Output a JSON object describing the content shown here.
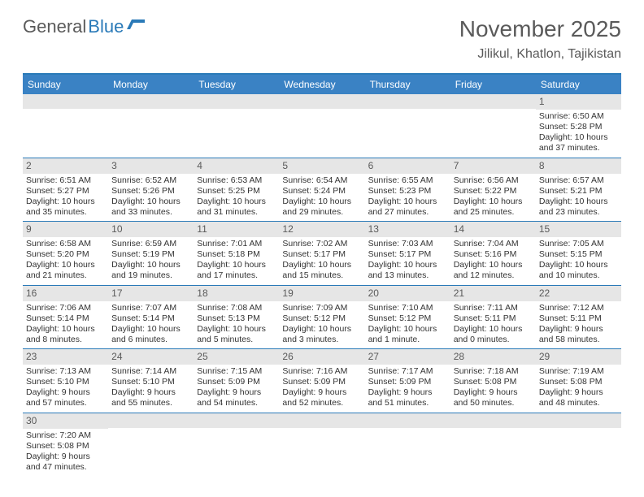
{
  "logo": {
    "text1": "General",
    "text2": "Blue"
  },
  "title": "November 2025",
  "location": "Jilikul, Khatlon, Tajikistan",
  "colors": {
    "header_bar": "#3a82c4",
    "border": "#2a7ab8",
    "daynum_bg": "#e6e6e6",
    "text_muted": "#5a5a5a",
    "text_body": "#333333",
    "logo_blue": "#2a7ab8"
  },
  "day_headers": [
    "Sunday",
    "Monday",
    "Tuesday",
    "Wednesday",
    "Thursday",
    "Friday",
    "Saturday"
  ],
  "weeks": [
    [
      null,
      null,
      null,
      null,
      null,
      null,
      {
        "n": "1",
        "sunrise": "Sunrise: 6:50 AM",
        "sunset": "Sunset: 5:28 PM",
        "daylight": "Daylight: 10 hours and 37 minutes."
      }
    ],
    [
      {
        "n": "2",
        "sunrise": "Sunrise: 6:51 AM",
        "sunset": "Sunset: 5:27 PM",
        "daylight": "Daylight: 10 hours and 35 minutes."
      },
      {
        "n": "3",
        "sunrise": "Sunrise: 6:52 AM",
        "sunset": "Sunset: 5:26 PM",
        "daylight": "Daylight: 10 hours and 33 minutes."
      },
      {
        "n": "4",
        "sunrise": "Sunrise: 6:53 AM",
        "sunset": "Sunset: 5:25 PM",
        "daylight": "Daylight: 10 hours and 31 minutes."
      },
      {
        "n": "5",
        "sunrise": "Sunrise: 6:54 AM",
        "sunset": "Sunset: 5:24 PM",
        "daylight": "Daylight: 10 hours and 29 minutes."
      },
      {
        "n": "6",
        "sunrise": "Sunrise: 6:55 AM",
        "sunset": "Sunset: 5:23 PM",
        "daylight": "Daylight: 10 hours and 27 minutes."
      },
      {
        "n": "7",
        "sunrise": "Sunrise: 6:56 AM",
        "sunset": "Sunset: 5:22 PM",
        "daylight": "Daylight: 10 hours and 25 minutes."
      },
      {
        "n": "8",
        "sunrise": "Sunrise: 6:57 AM",
        "sunset": "Sunset: 5:21 PM",
        "daylight": "Daylight: 10 hours and 23 minutes."
      }
    ],
    [
      {
        "n": "9",
        "sunrise": "Sunrise: 6:58 AM",
        "sunset": "Sunset: 5:20 PM",
        "daylight": "Daylight: 10 hours and 21 minutes."
      },
      {
        "n": "10",
        "sunrise": "Sunrise: 6:59 AM",
        "sunset": "Sunset: 5:19 PM",
        "daylight": "Daylight: 10 hours and 19 minutes."
      },
      {
        "n": "11",
        "sunrise": "Sunrise: 7:01 AM",
        "sunset": "Sunset: 5:18 PM",
        "daylight": "Daylight: 10 hours and 17 minutes."
      },
      {
        "n": "12",
        "sunrise": "Sunrise: 7:02 AM",
        "sunset": "Sunset: 5:17 PM",
        "daylight": "Daylight: 10 hours and 15 minutes."
      },
      {
        "n": "13",
        "sunrise": "Sunrise: 7:03 AM",
        "sunset": "Sunset: 5:17 PM",
        "daylight": "Daylight: 10 hours and 13 minutes."
      },
      {
        "n": "14",
        "sunrise": "Sunrise: 7:04 AM",
        "sunset": "Sunset: 5:16 PM",
        "daylight": "Daylight: 10 hours and 12 minutes."
      },
      {
        "n": "15",
        "sunrise": "Sunrise: 7:05 AM",
        "sunset": "Sunset: 5:15 PM",
        "daylight": "Daylight: 10 hours and 10 minutes."
      }
    ],
    [
      {
        "n": "16",
        "sunrise": "Sunrise: 7:06 AM",
        "sunset": "Sunset: 5:14 PM",
        "daylight": "Daylight: 10 hours and 8 minutes."
      },
      {
        "n": "17",
        "sunrise": "Sunrise: 7:07 AM",
        "sunset": "Sunset: 5:14 PM",
        "daylight": "Daylight: 10 hours and 6 minutes."
      },
      {
        "n": "18",
        "sunrise": "Sunrise: 7:08 AM",
        "sunset": "Sunset: 5:13 PM",
        "daylight": "Daylight: 10 hours and 5 minutes."
      },
      {
        "n": "19",
        "sunrise": "Sunrise: 7:09 AM",
        "sunset": "Sunset: 5:12 PM",
        "daylight": "Daylight: 10 hours and 3 minutes."
      },
      {
        "n": "20",
        "sunrise": "Sunrise: 7:10 AM",
        "sunset": "Sunset: 5:12 PM",
        "daylight": "Daylight: 10 hours and 1 minute."
      },
      {
        "n": "21",
        "sunrise": "Sunrise: 7:11 AM",
        "sunset": "Sunset: 5:11 PM",
        "daylight": "Daylight: 10 hours and 0 minutes."
      },
      {
        "n": "22",
        "sunrise": "Sunrise: 7:12 AM",
        "sunset": "Sunset: 5:11 PM",
        "daylight": "Daylight: 9 hours and 58 minutes."
      }
    ],
    [
      {
        "n": "23",
        "sunrise": "Sunrise: 7:13 AM",
        "sunset": "Sunset: 5:10 PM",
        "daylight": "Daylight: 9 hours and 57 minutes."
      },
      {
        "n": "24",
        "sunrise": "Sunrise: 7:14 AM",
        "sunset": "Sunset: 5:10 PM",
        "daylight": "Daylight: 9 hours and 55 minutes."
      },
      {
        "n": "25",
        "sunrise": "Sunrise: 7:15 AM",
        "sunset": "Sunset: 5:09 PM",
        "daylight": "Daylight: 9 hours and 54 minutes."
      },
      {
        "n": "26",
        "sunrise": "Sunrise: 7:16 AM",
        "sunset": "Sunset: 5:09 PM",
        "daylight": "Daylight: 9 hours and 52 minutes."
      },
      {
        "n": "27",
        "sunrise": "Sunrise: 7:17 AM",
        "sunset": "Sunset: 5:09 PM",
        "daylight": "Daylight: 9 hours and 51 minutes."
      },
      {
        "n": "28",
        "sunrise": "Sunrise: 7:18 AM",
        "sunset": "Sunset: 5:08 PM",
        "daylight": "Daylight: 9 hours and 50 minutes."
      },
      {
        "n": "29",
        "sunrise": "Sunrise: 7:19 AM",
        "sunset": "Sunset: 5:08 PM",
        "daylight": "Daylight: 9 hours and 48 minutes."
      }
    ],
    [
      {
        "n": "30",
        "sunrise": "Sunrise: 7:20 AM",
        "sunset": "Sunset: 5:08 PM",
        "daylight": "Daylight: 9 hours and 47 minutes."
      },
      null,
      null,
      null,
      null,
      null,
      null
    ]
  ]
}
